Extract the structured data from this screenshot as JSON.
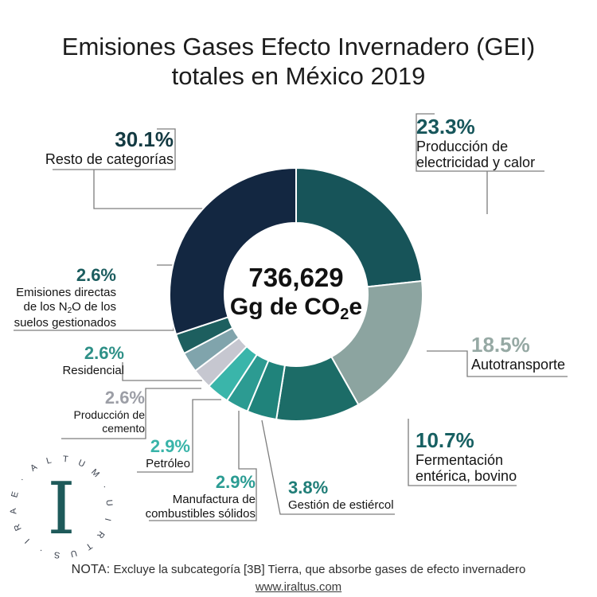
{
  "title": {
    "line1": "Emisiones Gases Efecto Invernadero (GEI)",
    "line2": "totales en México 2019"
  },
  "center": {
    "value": "736,629",
    "unit_pre": "Gg de CO",
    "unit_sub": "2",
    "unit_post": "e"
  },
  "chart_data": {
    "type": "pie",
    "title": "Emisiones Gases Efecto Invernadero (GEI) totales en México 2019",
    "center_total": "736,629 Gg de CO2e",
    "units": "percent",
    "start_angle_deg": 0,
    "direction": "clockwise",
    "donut": true,
    "segments": [
      {
        "id": "electricidad",
        "label": "Producción de electricidad y calor",
        "label_lines": [
          "Producción de",
          "electricidad y calor"
        ],
        "value": 23.3,
        "pct": "23.3%",
        "color": "#175459",
        "pct_color": "#17565B"
      },
      {
        "id": "autotransporte",
        "label": "Autotransporte",
        "label_lines": [
          "Autotransporte"
        ],
        "value": 18.5,
        "pct": "18.5%",
        "color": "#8CA4A0",
        "pct_color": "#96A9A4"
      },
      {
        "id": "fermentacion",
        "label": "Fermentación entérica, bovino",
        "label_lines": [
          "Fermentación",
          "entérica, bovino"
        ],
        "value": 10.7,
        "pct": "10.7%",
        "color": "#1C6C67",
        "pct_color": "#176062"
      },
      {
        "id": "estiercol",
        "label": "Gestión de estiércol",
        "label_lines": [
          "Gestión de estiércol"
        ],
        "value": 3.8,
        "pct": "3.8%",
        "color": "#20837B",
        "pct_color": "#1F7D77"
      },
      {
        "id": "manufactura",
        "label": "Manufactura de combustibles sólidos",
        "label_lines": [
          "Manufactura de",
          "combustibles sólidos"
        ],
        "value": 2.9,
        "pct": "2.9%",
        "color": "#2C9B92",
        "pct_color": "#2B9C93"
      },
      {
        "id": "petroleo",
        "label": "Petróleo",
        "label_lines": [
          "Petróleo"
        ],
        "value": 2.9,
        "pct": "2.9%",
        "color": "#3AB5AA",
        "pct_color": "#39B4A9"
      },
      {
        "id": "cemento",
        "label": "Producción de cemento",
        "label_lines": [
          "Producción de",
          "cemento"
        ],
        "value": 2.6,
        "pct": "2.6%",
        "color": "#C6C7D0",
        "pct_color": "#9C9EA6"
      },
      {
        "id": "residencial",
        "label": "Residencial",
        "label_lines": [
          "Residencial"
        ],
        "value": 2.6,
        "pct": "2.6%",
        "color": "#80A4AC",
        "pct_color": "#2E9087"
      },
      {
        "id": "n2o-suelos",
        "label": "Emisiones directas de los N2O de los suelos gestionados",
        "label_lines": [
          "Emisiones directas",
          "de los N2O de los",
          "suelos gestionados"
        ],
        "sub_line": {
          "pre": "de los N",
          "sub": "2",
          "post": "O de los"
        },
        "value": 2.6,
        "pct": "2.6%",
        "color": "#1D5F5F",
        "pct_color": "#1C5D5F"
      },
      {
        "id": "resto",
        "label": "Resto de categorías",
        "label_lines": [
          "Resto de categorías"
        ],
        "value": 30.1,
        "pct": "30.1%",
        "color": "#132741",
        "pct_color": "#133A42"
      }
    ]
  },
  "logo": {
    "motto": "ALTUM · UIRTUS · IRAE",
    "ring_chars": [
      "A",
      "L",
      "T",
      "U",
      "M",
      "·",
      "U",
      "I",
      "R",
      "T",
      "U",
      "S",
      "·",
      "I",
      "R",
      "A",
      "E",
      "·"
    ],
    "center_letter": "I",
    "center_color": "#1E5A5A",
    "ring_color": "#39404d"
  },
  "footer": {
    "nota": "NOTA:",
    "note_text": " Excluye la subcategoría [3B] Tierra, que absorbe gases de efecto invernadero",
    "url": "www.iraltus.com"
  }
}
